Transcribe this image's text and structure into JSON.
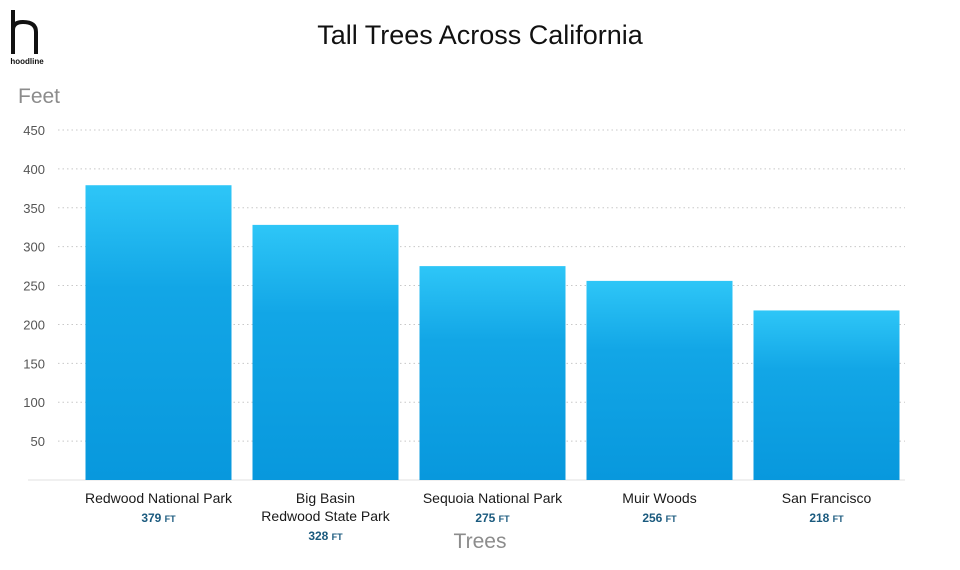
{
  "brand": {
    "logo_text": "hoodline"
  },
  "chart_data": {
    "type": "bar",
    "title": "Tall Trees Across California",
    "ylabel": "Feet",
    "xlabel": "Trees",
    "ylim": [
      0,
      450
    ],
    "yticks": [
      50,
      100,
      150,
      200,
      250,
      300,
      350,
      400,
      450
    ],
    "grid": true,
    "categories": [
      [
        "Redwood National Park"
      ],
      [
        "Big Basin",
        "Redwood State Park"
      ],
      [
        "Sequoia National Park"
      ],
      [
        "Muir Woods"
      ],
      [
        "San Francisco"
      ]
    ],
    "values": [
      379,
      328,
      275,
      256,
      218
    ],
    "value_unit": "FT",
    "colors": {
      "bar_top": "#2ec6f7",
      "bar_bottom": "#0898dd",
      "grid": "#c8c8c8",
      "value_label": "#1a5a7e"
    }
  }
}
